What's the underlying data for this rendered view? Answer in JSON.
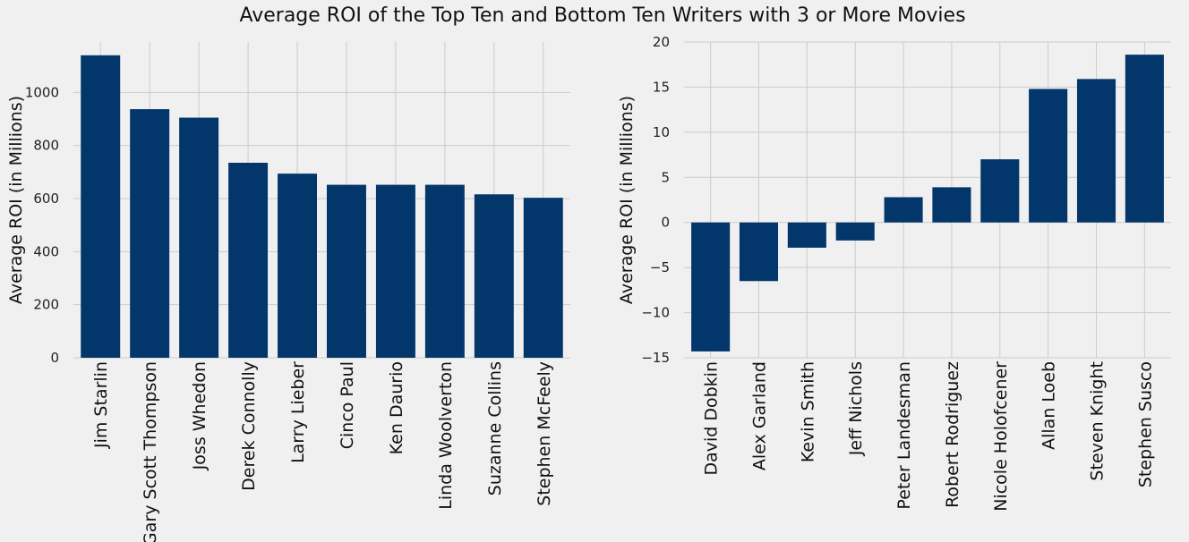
{
  "title": "Average ROI of the Top Ten and Bottom Ten Writers with 3 or More Movies",
  "chart_data": [
    {
      "type": "bar",
      "ylabel": "Average ROI (in Millions)",
      "ylim": [
        0,
        1190
      ],
      "yticks": [
        0,
        200,
        400,
        600,
        800,
        1000
      ],
      "grid": true,
      "categories": [
        "Jim Starlin",
        "Gary Scott Thompson",
        "Joss Whedon",
        "Derek Connolly",
        "Larry Lieber",
        "Cinco Paul",
        "Ken Daurio",
        "Linda Woolverton",
        "Suzanne Collins",
        "Stephen McFeely"
      ],
      "values": [
        1140,
        937,
        905,
        735,
        694,
        652,
        652,
        652,
        616,
        603
      ],
      "color": "#03376b"
    },
    {
      "type": "bar",
      "ylabel": "Average ROI (in Millions)",
      "ylim": [
        -15,
        20
      ],
      "yticks": [
        -15,
        -10,
        -5,
        0,
        5,
        10,
        15,
        20
      ],
      "grid": true,
      "categories": [
        "David Dobkin",
        "Alex Garland",
        "Kevin Smith",
        "Jeff Nichols",
        "Peter Landesman",
        "Robert Rodriguez",
        "Nicole Holofcener",
        "Allan Loeb",
        "Steven Knight",
        "Stephen Susco"
      ],
      "values": [
        -14.3,
        -6.5,
        -2.8,
        -2.0,
        2.8,
        3.9,
        7.0,
        14.8,
        15.9,
        18.6
      ],
      "color": "#03376b"
    }
  ]
}
